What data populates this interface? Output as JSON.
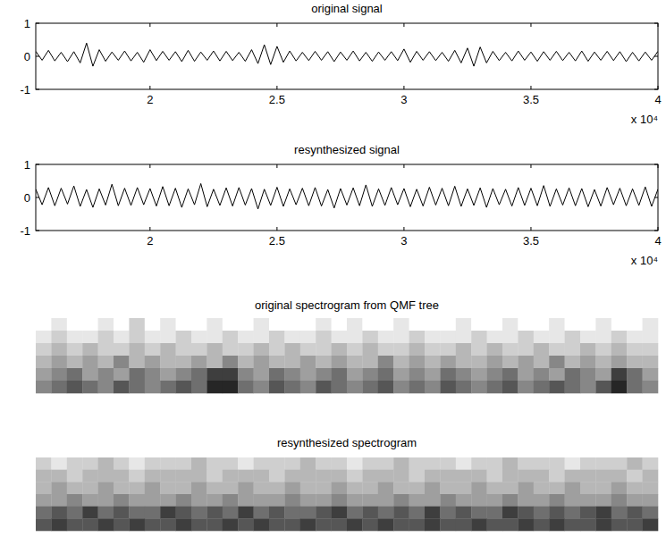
{
  "chart_data": [
    {
      "type": "line",
      "title": "original signal",
      "color": "#000000",
      "annotations": [
        "x 10⁴"
      ],
      "xlim": [
        1.55,
        4
      ],
      "ylim": [
        -1,
        1
      ],
      "xticks": [
        2,
        2.5,
        3,
        3.5,
        4
      ],
      "yticks": [
        -1,
        0,
        1
      ],
      "x": [
        1.55,
        1.575,
        1.6,
        1.625,
        1.65,
        1.675,
        1.7,
        1.725,
        1.75,
        1.775,
        1.8,
        1.825,
        1.85,
        1.875,
        1.9,
        1.925,
        1.95,
        1.975,
        2,
        2.025,
        2.05,
        2.075,
        2.1,
        2.125,
        2.15,
        2.175,
        2.2,
        2.225,
        2.25,
        2.275,
        2.3,
        2.325,
        2.35,
        2.375,
        2.4,
        2.425,
        2.45,
        2.475,
        2.5,
        2.525,
        2.55,
        2.575,
        2.6,
        2.625,
        2.65,
        2.675,
        2.7,
        2.725,
        2.75,
        2.775,
        2.8,
        2.825,
        2.85,
        2.875,
        2.9,
        2.925,
        2.95,
        2.975,
        3,
        3.025,
        3.05,
        3.075,
        3.1,
        3.125,
        3.15,
        3.175,
        3.2,
        3.225,
        3.25,
        3.275,
        3.3,
        3.325,
        3.35,
        3.375,
        3.4,
        3.425,
        3.45,
        3.475,
        3.5,
        3.525,
        3.55,
        3.575,
        3.6,
        3.625,
        3.65,
        3.675,
        3.7,
        3.725,
        3.75,
        3.775,
        3.8,
        3.825,
        3.85,
        3.875,
        3.9,
        3.925,
        3.95,
        3.975,
        4
      ],
      "values": [
        0.15,
        -0.12,
        0.18,
        -0.14,
        0.12,
        -0.16,
        0.14,
        -0.2,
        0.4,
        -0.3,
        0.2,
        -0.15,
        0.13,
        -0.12,
        0.16,
        -0.14,
        0.12,
        -0.18,
        0.2,
        -0.13,
        0.15,
        -0.12,
        0.14,
        -0.16,
        0.18,
        -0.15,
        0.13,
        -0.12,
        0.16,
        -0.14,
        0.15,
        -0.13,
        0.12,
        -0.15,
        0.2,
        -0.22,
        0.35,
        -0.25,
        0.3,
        -0.18,
        0.16,
        -0.14,
        0.12,
        -0.13,
        0.15,
        -0.12,
        0.14,
        -0.16,
        0.13,
        -0.12,
        0.16,
        -0.14,
        0.12,
        -0.15,
        0.13,
        -0.12,
        0.14,
        -0.13,
        0.22,
        -0.18,
        0.15,
        -0.12,
        0.14,
        -0.13,
        0.12,
        -0.15,
        0.18,
        -0.2,
        0.25,
        -0.3,
        0.28,
        -0.2,
        0.15,
        -0.13,
        0.12,
        -0.14,
        0.16,
        -0.12,
        0.13,
        -0.15,
        0.14,
        -0.12,
        0.15,
        -0.13,
        0.12,
        -0.14,
        0.16,
        -0.15,
        0.13,
        -0.12,
        0.15,
        -0.13,
        0.14,
        -0.16,
        0.12,
        -0.14,
        0.13,
        -0.12,
        0.15
      ]
    },
    {
      "type": "line",
      "title": "resynthesized signal",
      "color": "#000000",
      "annotations": [
        "x 10⁴"
      ],
      "xlim": [
        1.55,
        4
      ],
      "ylim": [
        -1,
        1
      ],
      "xticks": [
        2,
        2.5,
        3,
        3.5,
        4
      ],
      "yticks": [
        -1,
        0,
        1
      ],
      "x": [
        1.55,
        1.575,
        1.6,
        1.625,
        1.65,
        1.675,
        1.7,
        1.725,
        1.75,
        1.775,
        1.8,
        1.825,
        1.85,
        1.875,
        1.9,
        1.925,
        1.95,
        1.975,
        2,
        2.025,
        2.05,
        2.075,
        2.1,
        2.125,
        2.15,
        2.175,
        2.2,
        2.225,
        2.25,
        2.275,
        2.3,
        2.325,
        2.35,
        2.375,
        2.4,
        2.425,
        2.45,
        2.475,
        2.5,
        2.525,
        2.55,
        2.575,
        2.6,
        2.625,
        2.65,
        2.675,
        2.7,
        2.725,
        2.75,
        2.775,
        2.8,
        2.825,
        2.85,
        2.875,
        2.9,
        2.925,
        2.95,
        2.975,
        3,
        3.025,
        3.05,
        3.075,
        3.1,
        3.125,
        3.15,
        3.175,
        3.2,
        3.225,
        3.25,
        3.275,
        3.3,
        3.325,
        3.35,
        3.375,
        3.4,
        3.425,
        3.45,
        3.475,
        3.5,
        3.525,
        3.55,
        3.575,
        3.6,
        3.625,
        3.65,
        3.675,
        3.7,
        3.725,
        3.75,
        3.775,
        3.8,
        3.825,
        3.85,
        3.875,
        3.9,
        3.925,
        3.95,
        3.975,
        4
      ],
      "values": [
        0.25,
        -0.22,
        0.3,
        -0.25,
        0.28,
        -0.2,
        0.35,
        -0.27,
        0.24,
        -0.3,
        0.26,
        -0.23,
        0.4,
        -0.25,
        0.28,
        -0.24,
        0.3,
        -0.22,
        0.27,
        -0.26,
        0.33,
        -0.25,
        0.28,
        -0.3,
        0.26,
        -0.22,
        0.42,
        -0.28,
        0.25,
        -0.24,
        0.29,
        -0.26,
        0.3,
        -0.23,
        0.27,
        -0.35,
        0.25,
        -0.24,
        0.31,
        -0.27,
        0.26,
        -0.22,
        0.28,
        -0.25,
        0.3,
        -0.26,
        0.24,
        -0.32,
        0.27,
        -0.23,
        0.29,
        -0.25,
        0.38,
        -0.27,
        0.26,
        -0.24,
        0.3,
        -0.22,
        0.27,
        -0.28,
        0.25,
        -0.26,
        0.31,
        -0.23,
        0.28,
        -0.25,
        0.34,
        -0.27,
        0.26,
        -0.24,
        0.29,
        -0.3,
        0.27,
        -0.22,
        0.25,
        -0.26,
        0.3,
        -0.24,
        0.28,
        -0.25,
        0.36,
        -0.27,
        0.26,
        -0.23,
        0.29,
        -0.25,
        0.27,
        -0.28,
        0.24,
        -0.26,
        0.3,
        -0.22,
        0.28,
        -0.25,
        0.26,
        -0.24,
        0.32,
        -0.27,
        0.25
      ]
    },
    {
      "type": "heatmap",
      "title": "original spectrogram from QMF tree",
      "color": "#000000",
      "tick_labels": false,
      "zlim": [
        0,
        9
      ],
      "cells": [
        [
          0,
          1,
          0,
          0,
          1,
          0,
          2,
          0,
          1,
          0,
          0,
          1,
          0,
          0,
          1,
          0,
          0,
          0,
          1,
          0,
          1,
          0,
          0,
          1,
          0,
          0,
          0,
          1,
          0,
          0,
          1,
          0,
          0,
          1,
          0,
          0,
          1,
          0,
          0,
          1
        ],
        [
          1,
          2,
          1,
          1,
          2,
          1,
          2,
          1,
          1,
          2,
          1,
          1,
          2,
          1,
          1,
          2,
          1,
          1,
          2,
          1,
          1,
          2,
          1,
          1,
          2,
          1,
          1,
          1,
          2,
          1,
          1,
          2,
          1,
          1,
          2,
          1,
          1,
          2,
          1,
          1
        ],
        [
          2,
          3,
          2,
          3,
          2,
          2,
          3,
          2,
          3,
          2,
          2,
          3,
          2,
          2,
          3,
          2,
          3,
          2,
          2,
          3,
          2,
          3,
          2,
          2,
          3,
          2,
          2,
          3,
          2,
          3,
          2,
          2,
          3,
          2,
          2,
          3,
          2,
          3,
          2,
          2
        ],
        [
          3,
          4,
          3,
          4,
          3,
          5,
          3,
          4,
          3,
          3,
          4,
          3,
          5,
          3,
          4,
          3,
          3,
          4,
          3,
          4,
          3,
          3,
          5,
          3,
          4,
          3,
          4,
          3,
          3,
          4,
          3,
          4,
          3,
          5,
          3,
          4,
          3,
          4,
          3,
          3
        ],
        [
          4,
          5,
          6,
          4,
          5,
          4,
          6,
          5,
          4,
          5,
          6,
          8,
          8,
          5,
          4,
          6,
          5,
          4,
          5,
          6,
          4,
          5,
          6,
          4,
          5,
          4,
          6,
          5,
          4,
          5,
          6,
          4,
          5,
          4,
          6,
          5,
          4,
          8,
          6,
          4
        ],
        [
          5,
          6,
          7,
          6,
          5,
          7,
          6,
          5,
          6,
          7,
          6,
          9,
          9,
          6,
          5,
          7,
          6,
          5,
          7,
          6,
          5,
          6,
          7,
          5,
          6,
          5,
          7,
          6,
          5,
          6,
          7,
          5,
          6,
          7,
          6,
          5,
          7,
          9,
          6,
          5
        ]
      ]
    },
    {
      "type": "heatmap",
      "title": "resynthesized spectrogram",
      "color": "#000000",
      "tick_labels": false,
      "zlim": [
        0,
        9
      ],
      "cells": [
        [
          2,
          1,
          2,
          2,
          3,
          2,
          1,
          2,
          2,
          2,
          3,
          2,
          2,
          1,
          2,
          2,
          2,
          3,
          2,
          2,
          1,
          2,
          2,
          3,
          2,
          2,
          2,
          1,
          2,
          2,
          3,
          2,
          2,
          2,
          1,
          2,
          2,
          2,
          3,
          2
        ],
        [
          3,
          3,
          2,
          3,
          3,
          3,
          2,
          3,
          3,
          3,
          3,
          2,
          3,
          3,
          3,
          2,
          3,
          3,
          3,
          3,
          2,
          3,
          3,
          3,
          2,
          3,
          3,
          3,
          3,
          2,
          3,
          3,
          3,
          2,
          3,
          3,
          3,
          3,
          2,
          3
        ],
        [
          3,
          4,
          3,
          3,
          4,
          3,
          3,
          4,
          3,
          3,
          4,
          3,
          3,
          4,
          3,
          3,
          4,
          3,
          3,
          4,
          3,
          3,
          4,
          3,
          3,
          4,
          3,
          3,
          4,
          3,
          3,
          4,
          3,
          3,
          4,
          3,
          3,
          4,
          3,
          3
        ],
        [
          4,
          4,
          5,
          4,
          4,
          5,
          4,
          4,
          4,
          5,
          4,
          4,
          5,
          4,
          4,
          4,
          5,
          4,
          4,
          5,
          4,
          4,
          4,
          5,
          4,
          4,
          5,
          4,
          4,
          4,
          5,
          4,
          4,
          5,
          4,
          4,
          4,
          5,
          4,
          4
        ],
        [
          6,
          7,
          6,
          8,
          6,
          7,
          6,
          6,
          8,
          7,
          6,
          7,
          6,
          8,
          6,
          7,
          6,
          6,
          7,
          8,
          6,
          7,
          6,
          7,
          6,
          8,
          6,
          7,
          6,
          6,
          8,
          7,
          6,
          7,
          6,
          7,
          8,
          6,
          7,
          6
        ],
        [
          7,
          8,
          7,
          7,
          8,
          7,
          8,
          7,
          7,
          8,
          7,
          7,
          8,
          7,
          8,
          7,
          7,
          8,
          7,
          7,
          8,
          7,
          8,
          7,
          7,
          8,
          7,
          7,
          8,
          7,
          7,
          8,
          7,
          8,
          7,
          7,
          8,
          7,
          7,
          8
        ]
      ]
    }
  ]
}
